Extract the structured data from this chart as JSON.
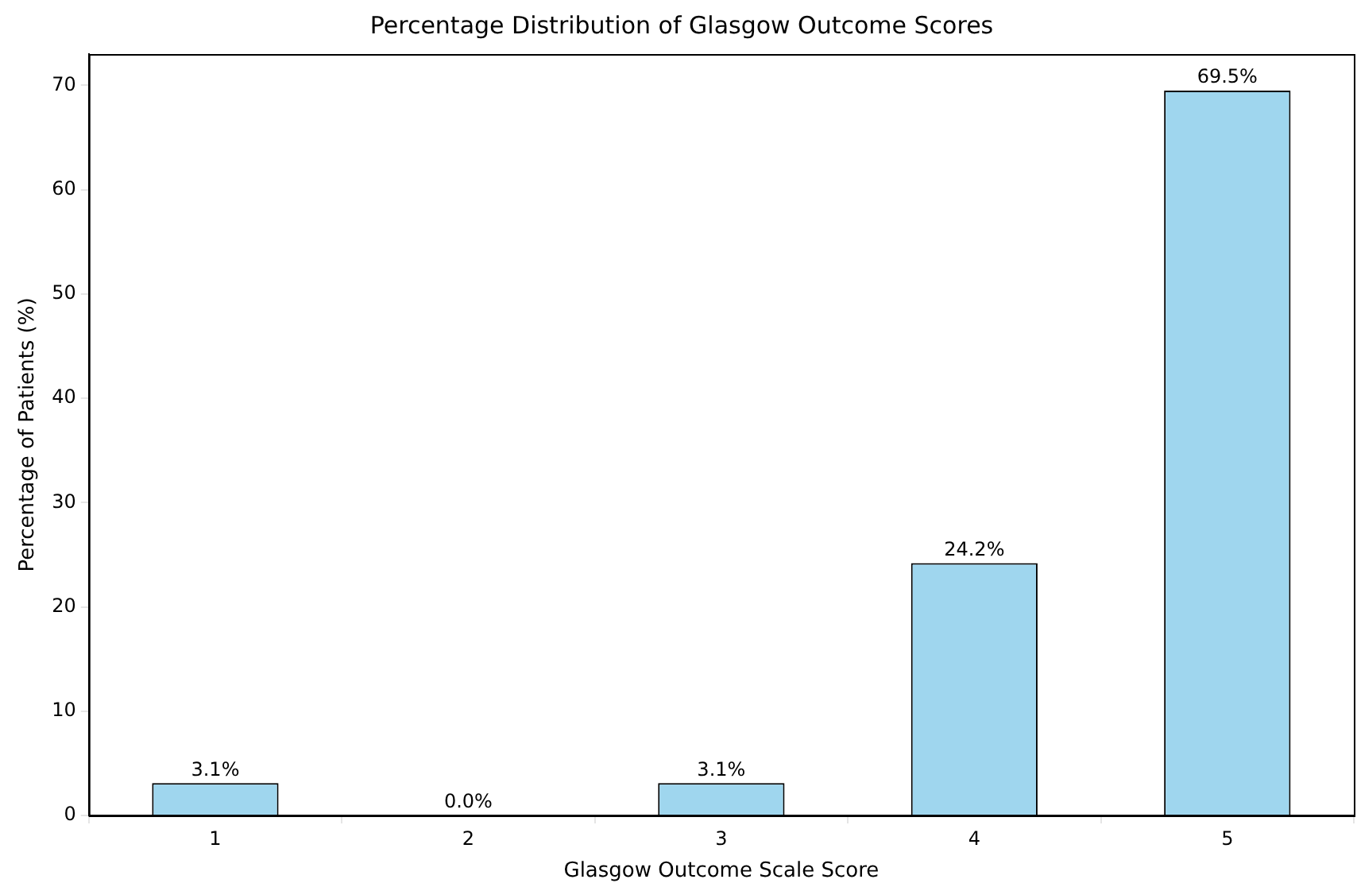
{
  "chart_data": {
    "type": "bar",
    "title": "Percentage Distribution of Glasgow Outcome Scores",
    "xlabel": "Glasgow Outcome Scale Score",
    "ylabel": "Percentage of Patients (%)",
    "categories": [
      "1",
      "2",
      "3",
      "4",
      "5"
    ],
    "values": [
      3.1,
      0.0,
      3.1,
      24.2,
      69.5
    ],
    "value_labels": [
      "3.1%",
      "0.0%",
      "3.1%",
      "24.2%",
      "69.5%"
    ],
    "color": "#9fd6ee",
    "ylim": [
      0,
      73
    ],
    "yticks": [
      0,
      10,
      20,
      30,
      40,
      50,
      60,
      70
    ],
    "grid": false
  }
}
